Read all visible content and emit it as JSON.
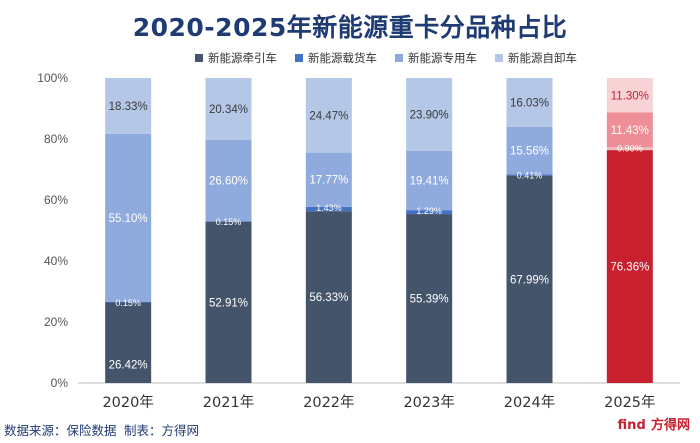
{
  "title": "2020-2025年新能源重卡分品种占比",
  "source": "数据来源：保险数据  制表：方得网",
  "brand": {
    "logo": "find",
    "name": "方得网"
  },
  "colors": {
    "tractor": "#44546a",
    "cargo": "#4472c4",
    "special": "#8faadc",
    "dump": "#b4c7e7",
    "tractor_2025": "#c8202f",
    "cargo_2025": "#e8bfc2",
    "special_2025": "#ee8f98",
    "dump_2025": "#f7d3d6"
  },
  "chart_data": {
    "type": "bar",
    "stacked": true,
    "title": "2020-2025年新能源重卡分品种占比",
    "categories": [
      "2020年",
      "2021年",
      "2022年",
      "2023年",
      "2024年",
      "2025年"
    ],
    "ylim": [
      0,
      100
    ],
    "yticks": [
      "0%",
      "20%",
      "40%",
      "60%",
      "80%",
      "100%"
    ],
    "legend_position": "top",
    "grid": false,
    "series": [
      {
        "name": "新能源牵引车",
        "key": "tractor",
        "values": [
          26.42,
          52.91,
          56.33,
          55.39,
          67.99,
          76.36
        ],
        "labels": [
          "26.42%",
          "52.91%",
          "56.33%",
          "55.39%",
          "67.99%",
          "76.36%"
        ]
      },
      {
        "name": "新能源载货车",
        "key": "cargo",
        "values": [
          0.15,
          0.15,
          1.43,
          1.29,
          0.41,
          0.9
        ],
        "labels": [
          "0.15%",
          "0.15%",
          "1.43%",
          "1.29%",
          "0.41%",
          "0.90%"
        ]
      },
      {
        "name": "新能源专用车",
        "key": "special",
        "values": [
          55.1,
          26.6,
          17.77,
          19.41,
          15.56,
          11.43
        ],
        "labels": [
          "55.10%",
          "26.60%",
          "17.77%",
          "19.41%",
          "15.56%",
          "11.43%"
        ]
      },
      {
        "name": "新能源自卸车",
        "key": "dump",
        "values": [
          18.33,
          20.34,
          24.47,
          23.9,
          16.03,
          11.3
        ],
        "labels": [
          "18.33%",
          "20.34%",
          "24.47%",
          "23.90%",
          "16.03%",
          "11.30%"
        ]
      }
    ]
  }
}
